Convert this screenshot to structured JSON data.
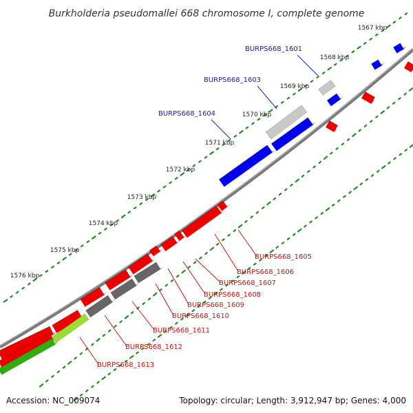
{
  "title": "Burkholderia pseudomallei 668 chromosome I, complete genome",
  "footer": {
    "accession": "Accession: NC_009074",
    "summary": "Topology: circular; Length: 3,912,947 bp; Genes: 4,000"
  },
  "colors": {
    "backbone": "#808080",
    "forward_gene": "#0000ee",
    "forward_gene_alt": "#c8c8c8",
    "reverse_gene": "#ee0000",
    "reverse_gene_alt": "#666666",
    "rna_gene": "#33aa11",
    "rna_gene_alt": "#99dd33",
    "tick": "#228822",
    "label_blue": "#1a1aa8",
    "label_red": "#cc1111"
  },
  "ruler_labels": [
    "1567 kbp",
    "1568 kbp",
    "1569 kbp",
    "1570 kbp",
    "1571 kbp",
    "1572 kbp",
    "1573 kbp",
    "1574 kbp",
    "1575 kbp",
    "1576 kbp"
  ],
  "forward_labels": [
    "BURPS668_1601",
    "BURPS668_1603",
    "BURPS668_1604"
  ],
  "reverse_labels": [
    "BURPS668_1605",
    "BURPS668_1606",
    "BURPS668_1607",
    "BURPS668_1608",
    "BURPS668_1609",
    "BURPS668_1610",
    "BURPS668_1611",
    "BURPS668_1612",
    "BURPS668_1613"
  ]
}
